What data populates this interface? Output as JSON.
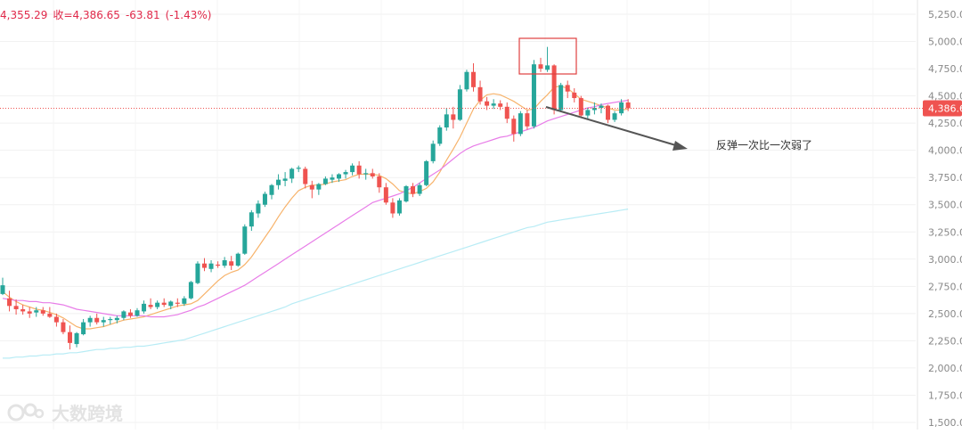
{
  "header": {
    "partial_value": "4,355.29",
    "close_label": "收=4,386.65",
    "change": "-63.81",
    "change_pct": "(-1.43%)"
  },
  "annotation": {
    "text": "反弹一次比一次弱了"
  },
  "watermark": {
    "text": "大数跨境"
  },
  "colors": {
    "up": "#26a69a",
    "down": "#ef5350",
    "ma_short": "#f7b36b",
    "ma_mid": "#e87de8",
    "ma_long": "#b8ecf5",
    "price_line": "#ef5350",
    "highlight_box": "#e04040",
    "arrow": "#555555"
  },
  "chart_data": {
    "type": "candlestick",
    "y_axis": {
      "side": "right",
      "ylim": [
        1500,
        5250
      ],
      "ticks": [
        "1,500.00",
        "1,750.00",
        "2,000.00",
        "2,250.00",
        "2,500.00",
        "2,750.00",
        "3,000.00",
        "3,250.00",
        "3,500.00",
        "3,750.00",
        "4,000.00",
        "4,250.00",
        "4,500.00",
        "4,750.00",
        "5,000.00",
        "5,250.00"
      ]
    },
    "last_price": "4,386.6",
    "last_price_value": 4386.65,
    "grid": true,
    "candles": [
      [
        2680,
        2830,
        2670,
        2760
      ],
      [
        2640,
        2710,
        2520,
        2570
      ],
      [
        2570,
        2630,
        2490,
        2540
      ],
      [
        2540,
        2580,
        2490,
        2520
      ],
      [
        2520,
        2560,
        2460,
        2500
      ],
      [
        2510,
        2560,
        2470,
        2530
      ],
      [
        2530,
        2560,
        2480,
        2500
      ],
      [
        2500,
        2560,
        2460,
        2470
      ],
      [
        2470,
        2500,
        2380,
        2420
      ],
      [
        2420,
        2450,
        2310,
        2330
      ],
      [
        2330,
        2390,
        2170,
        2230
      ],
      [
        2220,
        2330,
        2190,
        2320
      ],
      [
        2310,
        2450,
        2300,
        2420
      ],
      [
        2420,
        2480,
        2380,
        2460
      ],
      [
        2460,
        2500,
        2400,
        2420
      ],
      [
        2420,
        2470,
        2380,
        2440
      ],
      [
        2440,
        2470,
        2400,
        2450
      ],
      [
        2440,
        2480,
        2410,
        2460
      ],
      [
        2460,
        2530,
        2440,
        2520
      ],
      [
        2510,
        2540,
        2460,
        2480
      ],
      [
        2480,
        2550,
        2470,
        2530
      ],
      [
        2520,
        2620,
        2500,
        2590
      ],
      [
        2580,
        2640,
        2540,
        2560
      ],
      [
        2560,
        2620,
        2540,
        2600
      ],
      [
        2600,
        2640,
        2560,
        2580
      ],
      [
        2570,
        2620,
        2540,
        2610
      ],
      [
        2600,
        2640,
        2560,
        2590
      ],
      [
        2590,
        2660,
        2570,
        2640
      ],
      [
        2640,
        2800,
        2630,
        2790
      ],
      [
        2780,
        2980,
        2770,
        2960
      ],
      [
        2960,
        3010,
        2890,
        2920
      ],
      [
        2910,
        2990,
        2880,
        2960
      ],
      [
        2950,
        2980,
        2920,
        2940
      ],
      [
        2940,
        3020,
        2920,
        2990
      ],
      [
        2980,
        3030,
        2900,
        2940
      ],
      [
        2940,
        3060,
        2930,
        3050
      ],
      [
        3050,
        3320,
        3040,
        3300
      ],
      [
        3300,
        3450,
        3260,
        3430
      ],
      [
        3420,
        3540,
        3380,
        3510
      ],
      [
        3500,
        3620,
        3480,
        3600
      ],
      [
        3590,
        3690,
        3550,
        3680
      ],
      [
        3680,
        3780,
        3640,
        3730
      ],
      [
        3720,
        3800,
        3670,
        3740
      ],
      [
        3740,
        3840,
        3700,
        3830
      ],
      [
        3830,
        3860,
        3800,
        3840
      ],
      [
        3830,
        3850,
        3650,
        3690
      ],
      [
        3680,
        3720,
        3560,
        3640
      ],
      [
        3640,
        3700,
        3590,
        3690
      ],
      [
        3690,
        3760,
        3680,
        3740
      ],
      [
        3730,
        3780,
        3700,
        3750
      ],
      [
        3740,
        3790,
        3710,
        3780
      ],
      [
        3780,
        3820,
        3740,
        3800
      ],
      [
        3800,
        3880,
        3770,
        3860
      ],
      [
        3860,
        3900,
        3740,
        3780
      ],
      [
        3780,
        3830,
        3730,
        3790
      ],
      [
        3790,
        3830,
        3740,
        3760
      ],
      [
        3760,
        3790,
        3610,
        3660
      ],
      [
        3660,
        3700,
        3500,
        3520
      ],
      [
        3520,
        3560,
        3380,
        3420
      ],
      [
        3420,
        3560,
        3400,
        3540
      ],
      [
        3530,
        3680,
        3520,
        3670
      ],
      [
        3670,
        3700,
        3570,
        3600
      ],
      [
        3600,
        3700,
        3580,
        3680
      ],
      [
        3680,
        3910,
        3670,
        3900
      ],
      [
        3900,
        4090,
        3880,
        4060
      ],
      [
        4060,
        4230,
        4040,
        4210
      ],
      [
        4210,
        4390,
        4180,
        4330
      ],
      [
        4330,
        4400,
        4200,
        4280
      ],
      [
        4280,
        4600,
        4270,
        4560
      ],
      [
        4560,
        4740,
        4540,
        4720
      ],
      [
        4720,
        4800,
        4540,
        4580
      ],
      [
        4580,
        4640,
        4420,
        4450
      ],
      [
        4450,
        4490,
        4370,
        4410
      ],
      [
        4410,
        4470,
        4380,
        4430
      ],
      [
        4430,
        4460,
        4370,
        4400
      ],
      [
        4400,
        4440,
        4250,
        4290
      ],
      [
        4290,
        4320,
        4080,
        4150
      ],
      [
        4150,
        4360,
        4130,
        4340
      ],
      [
        4340,
        4370,
        4190,
        4220
      ],
      [
        4220,
        4830,
        4200,
        4790
      ],
      [
        4790,
        4850,
        4720,
        4750
      ],
      [
        4740,
        4950,
        4720,
        4780
      ],
      [
        4780,
        4790,
        4330,
        4370
      ],
      [
        4370,
        4620,
        4350,
        4600
      ],
      [
        4600,
        4640,
        4480,
        4540
      ],
      [
        4530,
        4570,
        4440,
        4480
      ],
      [
        4480,
        4500,
        4300,
        4320
      ],
      [
        4320,
        4390,
        4280,
        4370
      ],
      [
        4370,
        4440,
        4330,
        4390
      ],
      [
        4390,
        4430,
        4340,
        4410
      ],
      [
        4410,
        4420,
        4250,
        4280
      ],
      [
        4280,
        4360,
        4260,
        4340
      ],
      [
        4340,
        4470,
        4320,
        4440
      ],
      [
        4440,
        4470,
        4360,
        4386.65
      ]
    ],
    "series": [
      {
        "values": [
          2700,
          2650,
          2610,
          2580,
          2560,
          2540,
          2530,
          2510,
          2490,
          2460,
          2420,
          2380,
          2360,
          2360,
          2370,
          2380,
          2400,
          2420,
          2440,
          2450,
          2460,
          2470,
          2490,
          2510,
          2530,
          2550,
          2570,
          2580,
          2590,
          2620,
          2680,
          2740,
          2800,
          2850,
          2880,
          2900,
          2950,
          3020,
          3110,
          3200,
          3290,
          3390,
          3480,
          3560,
          3630,
          3660,
          3680,
          3680,
          3690,
          3710,
          3720,
          3730,
          3760,
          3780,
          3780,
          3780,
          3770,
          3740,
          3690,
          3630,
          3610,
          3600,
          3620,
          3650,
          3710,
          3800,
          3910,
          4010,
          4120,
          4250,
          4380,
          4460,
          4510,
          4520,
          4510,
          4480,
          4450,
          4410,
          4370,
          4380,
          4450,
          4510,
          4580,
          4590,
          4570,
          4520,
          4470,
          4450,
          4430,
          4410,
          4390,
          4370,
          4370,
          4380
        ]
      },
      {
        "values": [
          2640,
          2630,
          2620,
          2620,
          2610,
          2610,
          2600,
          2600,
          2590,
          2580,
          2560,
          2540,
          2530,
          2520,
          2510,
          2500,
          2490,
          2480,
          2480,
          2480,
          2480,
          2480,
          2470,
          2470,
          2470,
          2480,
          2490,
          2510,
          2530,
          2560,
          2580,
          2610,
          2640,
          2670,
          2700,
          2730,
          2760,
          2800,
          2840,
          2880,
          2920,
          2960,
          3000,
          3040,
          3080,
          3120,
          3160,
          3200,
          3240,
          3280,
          3320,
          3360,
          3400,
          3440,
          3480,
          3520,
          3540,
          3560,
          3580,
          3600,
          3630,
          3660,
          3700,
          3740,
          3780,
          3820,
          3870,
          3920,
          3970,
          4010,
          4040,
          4060,
          4080,
          4100,
          4120,
          4130,
          4150,
          4170,
          4190,
          4210,
          4240,
          4270,
          4290,
          4310,
          4330,
          4350,
          4370,
          4390,
          4400,
          4420,
          4430,
          4440,
          4450,
          4460
        ]
      },
      {
        "values": [
          2090,
          2090,
          2100,
          2100,
          2110,
          2110,
          2120,
          2120,
          2130,
          2130,
          2140,
          2140,
          2150,
          2160,
          2170,
          2170,
          2180,
          2180,
          2190,
          2190,
          2200,
          2200,
          2210,
          2220,
          2230,
          2240,
          2250,
          2260,
          2280,
          2300,
          2320,
          2340,
          2360,
          2380,
          2400,
          2420,
          2440,
          2460,
          2480,
          2500,
          2520,
          2540,
          2560,
          2590,
          2610,
          2630,
          2650,
          2670,
          2690,
          2710,
          2730,
          2750,
          2770,
          2790,
          2810,
          2830,
          2850,
          2870,
          2890,
          2910,
          2930,
          2950,
          2970,
          2990,
          3010,
          3030,
          3050,
          3070,
          3090,
          3110,
          3130,
          3150,
          3170,
          3190,
          3210,
          3230,
          3250,
          3270,
          3290,
          3300,
          3320,
          3340,
          3350,
          3360,
          3370,
          3380,
          3390,
          3400,
          3410,
          3420,
          3430,
          3440,
          3450,
          3460
        ]
      }
    ]
  }
}
